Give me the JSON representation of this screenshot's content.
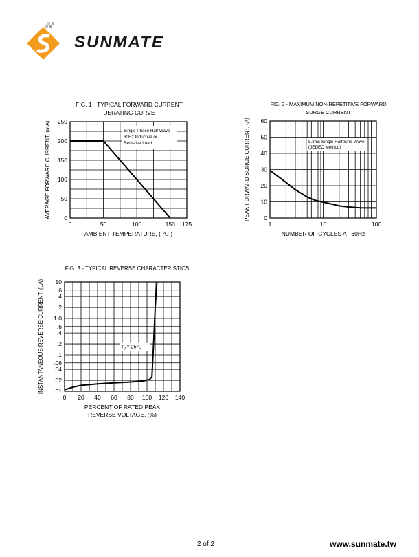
{
  "brand": {
    "name": "SUNMATE",
    "colors": {
      "orange": "#f29b1d",
      "dark": "#1a1a1a"
    }
  },
  "footer": {
    "page": "2 of 2",
    "url": "www.sunmate.tw"
  },
  "chart_data": [
    {
      "type": "line",
      "title": "FIG. 1 - TYPICAL FORWARD CURRENT",
      "subtitle": "DERATING CURVE",
      "xlabel": "AMBIENT TEMPERATURE, ( ℃ )",
      "ylabel": "AVERAGE FORWARD CURRENT, (mA)",
      "xlim": [
        0,
        175
      ],
      "ylim": [
        0,
        250
      ],
      "xticks": [
        0,
        50,
        100,
        150,
        175
      ],
      "yticks": [
        0,
        50,
        100,
        150,
        200,
        250
      ],
      "grid": true,
      "annotation": [
        "Single Phase Half Wave",
        "60Hz Inductive or",
        "Resistive Load"
      ],
      "series": [
        {
          "x": [
            0,
            50,
            150
          ],
          "y": [
            200,
            200,
            0
          ]
        }
      ]
    },
    {
      "type": "line",
      "title": "FIG. 2 - MAXIMUM NON-REPETITIVE FORWARD",
      "subtitle": "SURGE CURRENT",
      "xlabel": "NUMBER OF CYCLES AT 60Hz",
      "ylabel": "PEAK FORWARD SURGE CURRENT, (A)",
      "xscale": "log",
      "xlim": [
        1,
        100
      ],
      "ylim": [
        0,
        60
      ],
      "xticks": [
        1,
        10,
        100
      ],
      "yticks": [
        0,
        10,
        20,
        30,
        40,
        50,
        60
      ],
      "grid": true,
      "annotation": [
        "8.3ms Single Half Sine-Wave",
        "(JEDEC Method)"
      ],
      "series": [
        {
          "x": [
            1,
            2,
            3,
            5,
            7,
            10,
            15,
            20,
            30,
            50,
            100
          ],
          "y": [
            29.5,
            22,
            17.5,
            13,
            11,
            9.8,
            8.5,
            7.5,
            6.8,
            6.3,
            6.2
          ]
        }
      ]
    },
    {
      "type": "line",
      "title": "FIG. 3 - TYPICAL REVERSE CHARACTERISTICS",
      "xlabel": "PERCENT OF RATED PEAK",
      "xlabel2": "REVERSE VOLTAGE, (%)",
      "ylabel": "INSTANTANEOUS REVERSE CURRENT, (uA)",
      "xlim": [
        0,
        140
      ],
      "ylim": [
        0.01,
        10
      ],
      "yscale": "log",
      "xticks": [
        0,
        20,
        40,
        60,
        80,
        100,
        120,
        140
      ],
      "yticks": [
        0.01,
        0.02,
        0.04,
        0.06,
        0.1,
        0.2,
        0.4,
        0.6,
        1,
        2,
        4,
        6,
        10
      ],
      "ytick_labels": [
        ".01",
        ".02",
        ".04",
        ".06",
        ".1",
        ".2",
        ".4",
        ".6",
        "1.0",
        "2",
        "4",
        "6",
        "10"
      ],
      "grid": true,
      "annotation": "T",
      "annotation_sub": "J",
      "annotation_rest": " = 25℃",
      "series": [
        {
          "x": [
            0,
            10,
            20,
            40,
            60,
            80,
            95,
            103,
            106,
            108,
            110,
            112
          ],
          "y": [
            0.011,
            0.013,
            0.0145,
            0.016,
            0.017,
            0.018,
            0.019,
            0.021,
            0.025,
            0.2,
            2,
            10
          ]
        }
      ]
    }
  ]
}
